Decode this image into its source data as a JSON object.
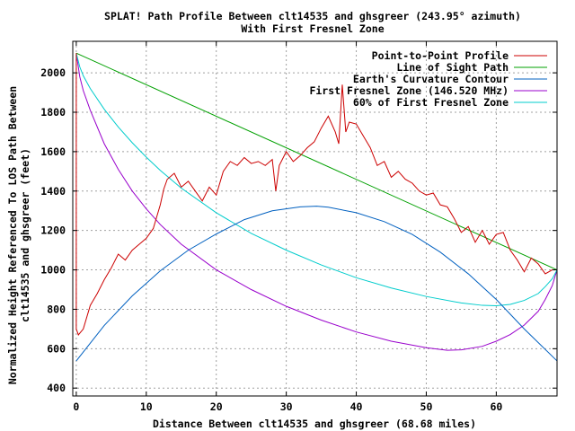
{
  "chart_data": {
    "type": "line",
    "title": "SPLAT! Path Profile Between clt14535 and ghsgreer (243.95° azimuth)",
    "subtitle": "With First Fresnel Zone",
    "xlabel": "Distance Between clt14535 and ghsgreer (68.68 miles)",
    "ylabel_line1": "Normalized Height Referenced To LOS Path Between",
    "ylabel_line2": "clt14535 and ghsgreer (feet)",
    "xlim": [
      -0.5,
      68.68
    ],
    "ylim": [
      360,
      2160
    ],
    "xticks": [
      0,
      10,
      20,
      30,
      40,
      50,
      60
    ],
    "yticks": [
      400,
      600,
      800,
      1000,
      1200,
      1400,
      1600,
      1800,
      2000
    ],
    "grid": true,
    "legend_position": "top-right",
    "series": [
      {
        "name": "Point-to-Point Profile",
        "color": "#cc0000",
        "x": [
          0,
          0,
          0.3,
          1,
          2,
          3,
          4,
          5,
          6,
          7,
          8,
          9,
          10,
          11,
          12,
          12.5,
          13,
          14,
          15,
          16,
          17,
          18,
          19,
          20,
          21,
          22,
          23,
          24,
          25,
          26,
          27,
          28,
          28.5,
          29,
          30,
          31,
          32,
          33,
          34,
          35,
          36,
          37,
          37.5,
          38,
          38.5,
          39,
          40,
          41,
          42,
          43,
          44,
          45,
          46,
          47,
          48,
          49,
          50,
          51,
          52,
          53,
          54,
          55,
          56,
          57,
          58,
          59,
          60,
          61,
          62,
          63,
          64,
          65,
          66,
          67,
          68,
          68.68
        ],
        "values": [
          2100,
          700,
          670,
          700,
          820,
          880,
          950,
          1010,
          1080,
          1050,
          1100,
          1130,
          1160,
          1210,
          1330,
          1410,
          1460,
          1490,
          1420,
          1450,
          1400,
          1350,
          1420,
          1380,
          1500,
          1550,
          1530,
          1570,
          1540,
          1550,
          1530,
          1560,
          1400,
          1530,
          1600,
          1550,
          1580,
          1620,
          1650,
          1720,
          1780,
          1700,
          1640,
          1940,
          1700,
          1750,
          1740,
          1680,
          1620,
          1530,
          1550,
          1470,
          1500,
          1460,
          1440,
          1400,
          1380,
          1390,
          1330,
          1320,
          1260,
          1190,
          1220,
          1140,
          1200,
          1130,
          1180,
          1190,
          1100,
          1050,
          990,
          1060,
          1030,
          980,
          1000,
          1000
        ]
      },
      {
        "name": "Line of Sight Path",
        "color": "#00a000",
        "x": [
          0,
          68.68
        ],
        "values": [
          2100,
          1000
        ]
      },
      {
        "name": "Earth's Curvature Contour",
        "color": "#0060c0",
        "x": [
          0,
          4,
          8,
          12,
          16,
          20,
          24,
          28,
          32,
          34.34,
          36,
          40,
          44,
          48,
          52,
          56,
          60,
          64,
          68.68
        ],
        "values": [
          538,
          718,
          868,
          995,
          1100,
          1182,
          1255,
          1300,
          1320,
          1323,
          1318,
          1290,
          1245,
          1180,
          1090,
          980,
          850,
          700,
          538
        ]
      },
      {
        "name": "First Fresnel Zone (146.520 MHz)",
        "color": "#9900cc",
        "x": [
          0,
          0.5,
          1,
          2,
          4,
          6,
          8,
          10,
          12,
          15,
          20,
          25,
          30,
          35,
          40,
          45,
          50,
          53,
          55,
          58,
          60,
          62,
          64,
          66,
          67,
          68,
          68.68
        ],
        "values": [
          2100,
          1980,
          1910,
          1810,
          1640,
          1510,
          1400,
          1310,
          1230,
          1130,
          1000,
          900,
          815,
          745,
          685,
          638,
          605,
          592,
          594,
          612,
          638,
          672,
          720,
          790,
          850,
          920,
          1000
        ]
      },
      {
        "name": "60% of First Fresnel Zone",
        "color": "#00cccc",
        "x": [
          0,
          0.5,
          1,
          2,
          4,
          6,
          8,
          10,
          12,
          15,
          20,
          25,
          30,
          35,
          40,
          45,
          50,
          55,
          58,
          60,
          62,
          64,
          66,
          67,
          68,
          68.68
        ],
        "values": [
          2100,
          2030,
          1985,
          1920,
          1815,
          1725,
          1645,
          1572,
          1505,
          1415,
          1290,
          1185,
          1100,
          1025,
          960,
          908,
          865,
          832,
          820,
          818,
          825,
          845,
          880,
          915,
          955,
          1000
        ]
      }
    ]
  }
}
